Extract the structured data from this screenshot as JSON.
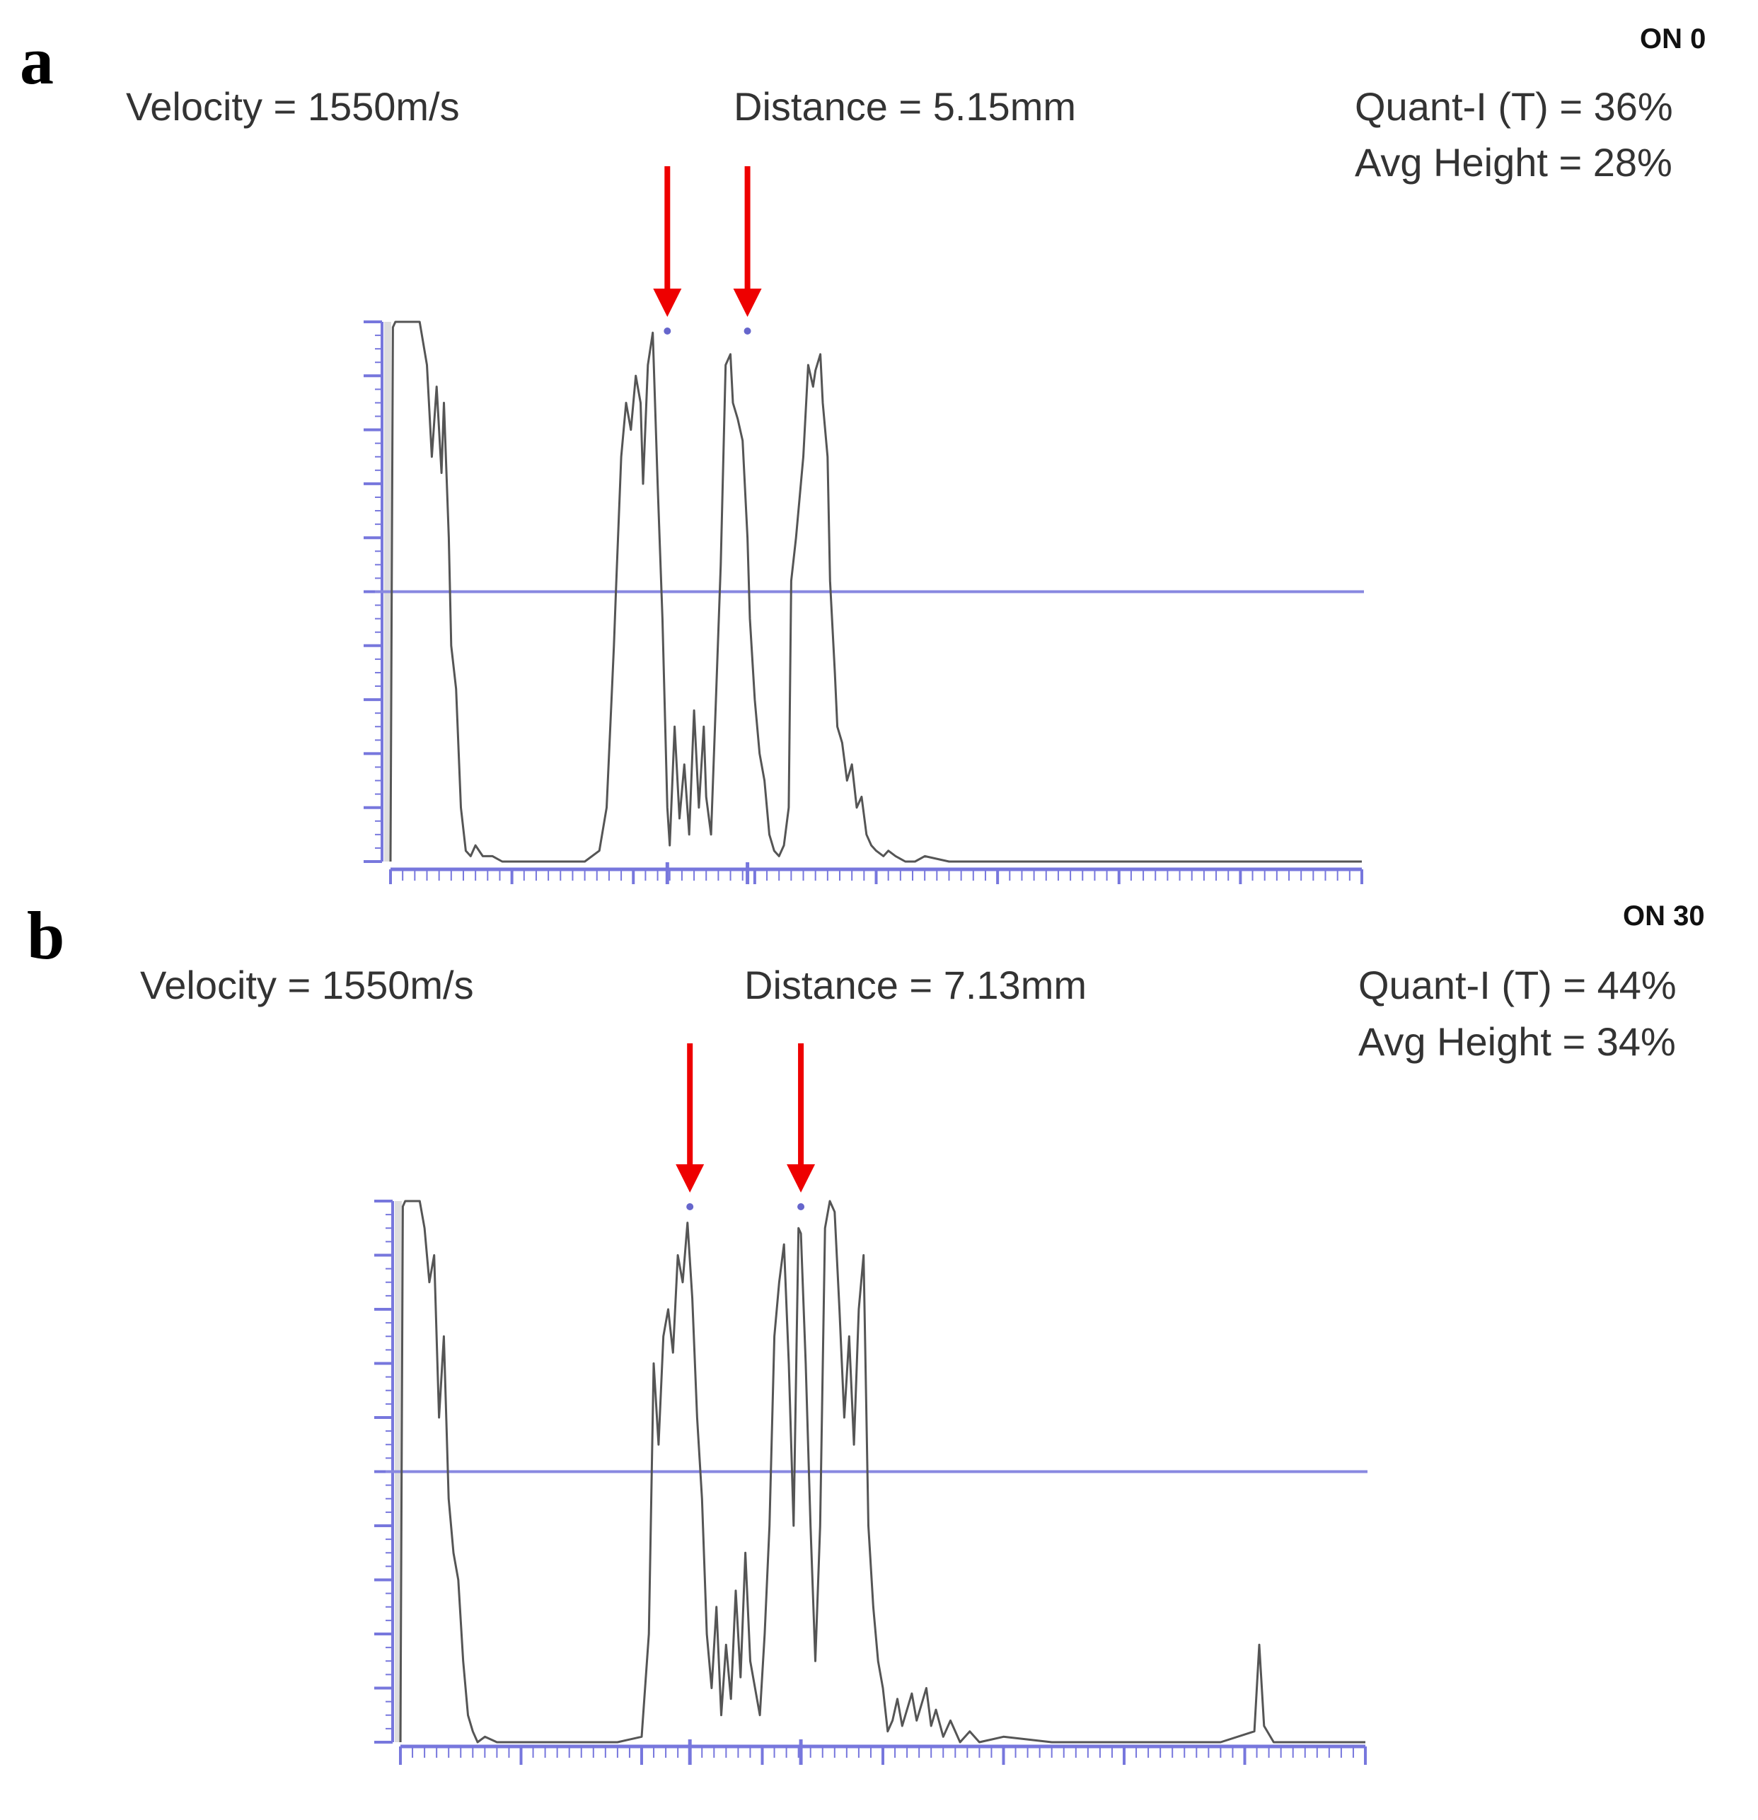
{
  "colors": {
    "trace": "#555555",
    "axis": "#7777dd",
    "threshold": "#8888e0",
    "arrow": "#ee0000"
  },
  "chart_data": [
    {
      "type": "line",
      "panel_label": "a",
      "tag": "ON 0",
      "velocity": "Velocity = 1550m/s",
      "distance": "Distance = 5.15mm",
      "quant": "Quant-I (T) = 36%",
      "avg_height": "Avg Height = 28%",
      "xlim": [
        0,
        400
      ],
      "ylim": [
        0,
        100
      ],
      "threshold": 50,
      "marker_x": [
        114,
        147
      ],
      "series": [
        {
          "x": [
            0,
            1,
            2,
            3,
            5,
            8,
            12,
            15,
            17,
            19,
            21,
            22,
            24,
            25,
            27,
            29,
            31,
            33,
            35,
            38,
            42,
            46,
            50,
            60,
            70,
            80,
            86,
            89,
            91,
            92,
            93,
            95,
            97,
            99,
            101,
            103,
            104,
            106,
            108,
            110,
            112,
            114,
            115,
            117,
            119,
            121,
            123,
            125,
            127,
            129,
            130,
            132,
            134,
            136,
            138,
            140,
            141,
            143,
            145,
            147,
            148,
            150,
            152,
            154,
            156,
            158,
            160,
            162,
            164,
            165,
            167,
            170,
            172,
            174,
            175,
            177,
            178,
            180,
            181,
            183,
            184,
            186,
            188,
            190,
            192,
            194,
            196,
            198,
            200,
            203,
            205,
            208,
            212,
            216,
            220,
            230,
            260,
            300,
            340,
            380,
            400
          ],
          "y": [
            0,
            99,
            100,
            100,
            100,
            100,
            100,
            92,
            75,
            88,
            72,
            85,
            60,
            40,
            32,
            10,
            2,
            1,
            3,
            1,
            1,
            0,
            0,
            0,
            0,
            0,
            2,
            10,
            30,
            40,
            52,
            75,
            85,
            80,
            90,
            85,
            70,
            92,
            98,
            70,
            45,
            10,
            3,
            25,
            8,
            18,
            5,
            28,
            10,
            25,
            12,
            5,
            30,
            55,
            92,
            94,
            85,
            82,
            78,
            60,
            45,
            30,
            20,
            15,
            5,
            2,
            1,
            3,
            10,
            52,
            60,
            75,
            92,
            88,
            91,
            94,
            85,
            75,
            52,
            35,
            25,
            22,
            15,
            18,
            10,
            12,
            5,
            3,
            2,
            1,
            2,
            1,
            0,
            0,
            1,
            0,
            0,
            0,
            0,
            0,
            0
          ]
        }
      ]
    },
    {
      "type": "line",
      "panel_label": "b",
      "tag": "ON 30",
      "velocity": "Velocity = 1550m/s",
      "distance": "Distance = 7.13mm",
      "quant": "Quant-I (T) = 44%",
      "avg_height": "Avg Height = 34%",
      "xlim": [
        0,
        400
      ],
      "ylim": [
        0,
        100
      ],
      "threshold": 50,
      "marker_x": [
        120,
        166
      ],
      "series": [
        {
          "x": [
            0,
            1,
            2,
            3,
            5,
            8,
            10,
            12,
            14,
            16,
            18,
            20,
            22,
            24,
            26,
            28,
            30,
            32,
            35,
            40,
            50,
            70,
            90,
            100,
            103,
            105,
            107,
            109,
            111,
            113,
            115,
            117,
            119,
            121,
            123,
            125,
            127,
            129,
            131,
            133,
            135,
            137,
            139,
            141,
            143,
            145,
            147,
            149,
            151,
            153,
            155,
            157,
            159,
            161,
            163,
            165,
            166,
            168,
            170,
            172,
            174,
            176,
            178,
            180,
            182,
            184,
            186,
            188,
            190,
            192,
            194,
            196,
            198,
            200,
            202,
            204,
            206,
            208,
            210,
            212,
            214,
            216,
            218,
            220,
            222,
            225,
            228,
            232,
            236,
            240,
            250,
            270,
            300,
            320,
            340,
            354,
            356,
            358,
            362,
            380,
            400
          ],
          "y": [
            0,
            99,
            100,
            100,
            100,
            100,
            95,
            85,
            90,
            60,
            75,
            45,
            35,
            30,
            15,
            5,
            2,
            0,
            1,
            0,
            0,
            0,
            0,
            1,
            20,
            70,
            55,
            75,
            80,
            72,
            90,
            85,
            96,
            82,
            60,
            45,
            20,
            10,
            25,
            5,
            18,
            8,
            28,
            12,
            35,
            15,
            10,
            5,
            20,
            40,
            75,
            85,
            92,
            70,
            40,
            95,
            94,
            70,
            40,
            15,
            40,
            95,
            100,
            98,
            80,
            60,
            75,
            55,
            80,
            90,
            40,
            25,
            15,
            10,
            2,
            4,
            8,
            3,
            6,
            9,
            4,
            7,
            10,
            3,
            6,
            1,
            4,
            0,
            2,
            0,
            1,
            0,
            0,
            0,
            0,
            2,
            18,
            3,
            0,
            0,
            0
          ]
        }
      ]
    }
  ]
}
